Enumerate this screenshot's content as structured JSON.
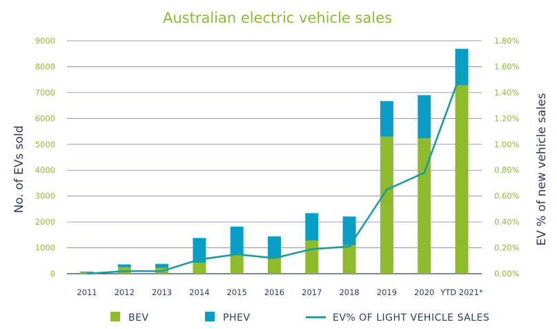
{
  "chart_data": {
    "type": "bar",
    "title": "Australian electric vehicle sales",
    "categories": [
      "2011",
      "2012",
      "2013",
      "2014",
      "2015",
      "2016",
      "2017",
      "2018",
      "2019",
      "2020",
      "YTD 2021*"
    ],
    "series": [
      {
        "name": "BEV",
        "kind": "stacked-bar",
        "axis": "left",
        "color": "#8dbb2c",
        "values": [
          50,
          250,
          220,
          420,
          700,
          600,
          1280,
          1100,
          5300,
          5230,
          7280
        ]
      },
      {
        "name": "PHEV",
        "kind": "stacked-bar",
        "axis": "left",
        "color": "#0a9ec7",
        "values": [
          30,
          110,
          160,
          960,
          1120,
          840,
          1060,
          1110,
          1370,
          1670,
          1410
        ]
      },
      {
        "name": "EV% OF LIGHT VEHICLE SALES",
        "kind": "line",
        "axis": "right",
        "color": "#1a9c9c",
        "values": [
          0.0,
          0.02,
          0.02,
          0.11,
          0.15,
          0.12,
          0.19,
          0.21,
          0.65,
          0.78,
          1.57
        ]
      }
    ],
    "ylabel": "No. of EVs sold",
    "y2label": "EV % of new vehicle sales",
    "ylim": [
      0,
      9000
    ],
    "y2lim": [
      0,
      1.8
    ],
    "yticks": [
      "0",
      "1000",
      "2000",
      "3000",
      "4000",
      "5000",
      "6000",
      "7000",
      "8000",
      "9000"
    ],
    "y2ticks": [
      "0.00%",
      "0.20%",
      "0.40%",
      "0.60%",
      "0.80%",
      "1.00%",
      "1.20%",
      "1.40%",
      "1.60%",
      "1.80%"
    ],
    "grid": true,
    "legend_position": "bottom"
  }
}
